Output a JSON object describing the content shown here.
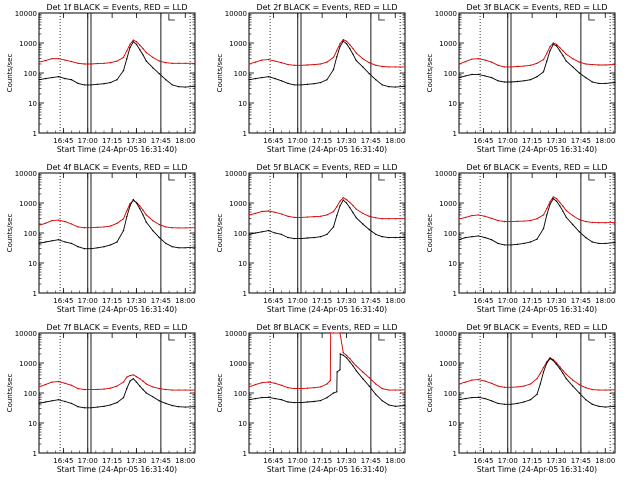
{
  "chart_data": {
    "type": "line",
    "xtick_labels": [
      "16:45",
      "17:00",
      "17:15",
      "17:30",
      "17:45",
      "18:00"
    ],
    "xlabel": "Start Time (24-Apr-05 16:31:40)",
    "ylabel": "Counts/sec",
    "y_scale": "log",
    "ylim": [
      1,
      10000
    ],
    "xlim_minutes_after_1630": [
      0,
      96
    ],
    "ytick_labels": [
      "1",
      "10",
      "100",
      "1000",
      "10000"
    ],
    "series_colors": {
      "Events": "#000000",
      "LLD": "#d40000"
    },
    "panels": [
      {
        "title": "Det 1f BLACK = Events, RED = LLD",
        "black": {
          "x": [
            0,
            4,
            8,
            12,
            16,
            20,
            24,
            28,
            32,
            36,
            40,
            44,
            48,
            52,
            54,
            56,
            58,
            60,
            62,
            64,
            66,
            70,
            74,
            78,
            82,
            86,
            90,
            96
          ],
          "y": [
            60,
            65,
            70,
            75,
            65,
            60,
            45,
            40,
            40,
            42,
            44,
            48,
            60,
            120,
            300,
            700,
            1100,
            900,
            600,
            400,
            250,
            150,
            95,
            60,
            40,
            35,
            34,
            36
          ]
        },
        "red": {
          "x": [
            0,
            4,
            8,
            12,
            16,
            20,
            24,
            28,
            32,
            36,
            40,
            44,
            48,
            52,
            54,
            56,
            58,
            60,
            62,
            64,
            66,
            70,
            74,
            78,
            82,
            86,
            90,
            96
          ],
          "y": [
            230,
            260,
            300,
            300,
            270,
            240,
            210,
            200,
            200,
            205,
            210,
            220,
            250,
            330,
            550,
            900,
            1250,
            1100,
            850,
            650,
            480,
            330,
            250,
            220,
            210,
            210,
            210,
            210
          ]
        }
      },
      {
        "title": "Det 2f BLACK = Events, RED = LLD",
        "black": {
          "x": [
            0,
            4,
            8,
            12,
            16,
            20,
            24,
            28,
            32,
            36,
            40,
            44,
            48,
            52,
            54,
            56,
            58,
            60,
            62,
            64,
            66,
            70,
            74,
            78,
            82,
            86,
            90,
            96
          ],
          "y": [
            60,
            65,
            70,
            75,
            65,
            55,
            45,
            40,
            40,
            42,
            44,
            48,
            60,
            130,
            350,
            750,
            1150,
            950,
            650,
            420,
            260,
            160,
            95,
            60,
            40,
            35,
            34,
            36
          ]
        },
        "red": {
          "x": [
            0,
            4,
            8,
            12,
            16,
            20,
            24,
            28,
            32,
            36,
            40,
            44,
            48,
            52,
            54,
            56,
            58,
            60,
            62,
            64,
            66,
            70,
            74,
            78,
            82,
            86,
            90,
            96
          ],
          "y": [
            200,
            230,
            270,
            280,
            250,
            220,
            190,
            180,
            180,
            185,
            190,
            200,
            230,
            330,
            560,
            950,
            1300,
            1150,
            880,
            650,
            460,
            300,
            220,
            180,
            165,
            160,
            160,
            160
          ]
        }
      },
      {
        "title": "Det 3f BLACK = Events, RED = LLD",
        "black": {
          "x": [
            0,
            4,
            8,
            12,
            16,
            20,
            24,
            28,
            32,
            36,
            40,
            44,
            48,
            52,
            54,
            56,
            58,
            60,
            62,
            64,
            66,
            70,
            74,
            78,
            82,
            86,
            90,
            96
          ],
          "y": [
            70,
            80,
            90,
            90,
            80,
            70,
            55,
            50,
            50,
            52,
            55,
            60,
            75,
            110,
            250,
            550,
            900,
            800,
            550,
            380,
            250,
            160,
            100,
            70,
            50,
            45,
            45,
            48
          ]
        },
        "red": {
          "x": [
            0,
            4,
            8,
            12,
            16,
            20,
            24,
            28,
            32,
            36,
            40,
            44,
            48,
            52,
            54,
            56,
            58,
            60,
            62,
            64,
            66,
            70,
            74,
            78,
            82,
            86,
            90,
            96
          ],
          "y": [
            200,
            240,
            290,
            300,
            270,
            230,
            180,
            160,
            160,
            165,
            170,
            180,
            210,
            280,
            450,
            750,
            1000,
            900,
            700,
            550,
            420,
            300,
            230,
            200,
            190,
            185,
            185,
            190
          ]
        }
      },
      {
        "title": "Det 4f BLACK = Events, RED = LLD",
        "black": {
          "x": [
            0,
            4,
            8,
            12,
            16,
            20,
            24,
            28,
            32,
            36,
            40,
            44,
            48,
            52,
            54,
            56,
            58,
            60,
            62,
            64,
            66,
            70,
            74,
            78,
            82,
            86,
            90,
            96
          ],
          "y": [
            45,
            50,
            55,
            60,
            50,
            45,
            35,
            30,
            30,
            32,
            35,
            40,
            50,
            120,
            350,
            800,
            1300,
            1000,
            650,
            400,
            230,
            120,
            70,
            45,
            35,
            32,
            32,
            34
          ]
        },
        "red": {
          "x": [
            0,
            4,
            8,
            12,
            16,
            20,
            24,
            28,
            32,
            36,
            40,
            44,
            48,
            52,
            54,
            56,
            58,
            60,
            62,
            64,
            66,
            70,
            74,
            78,
            82,
            86,
            90,
            96
          ],
          "y": [
            180,
            210,
            260,
            270,
            240,
            200,
            160,
            150,
            150,
            155,
            160,
            170,
            210,
            300,
            550,
            950,
            1200,
            1050,
            800,
            580,
            400,
            260,
            190,
            160,
            150,
            148,
            148,
            150
          ]
        }
      },
      {
        "title": "Det 5f BLACK = Events, RED = LLD",
        "black": {
          "x": [
            0,
            4,
            8,
            12,
            16,
            20,
            24,
            28,
            32,
            36,
            40,
            44,
            48,
            52,
            54,
            56,
            58,
            60,
            62,
            64,
            66,
            70,
            74,
            78,
            82,
            86,
            90,
            96
          ],
          "y": [
            90,
            100,
            110,
            120,
            100,
            90,
            70,
            65,
            65,
            68,
            70,
            75,
            90,
            160,
            380,
            800,
            1250,
            1000,
            700,
            480,
            320,
            200,
            130,
            90,
            75,
            70,
            70,
            72
          ]
        },
        "red": {
          "x": [
            0,
            4,
            8,
            12,
            16,
            20,
            24,
            28,
            32,
            36,
            40,
            44,
            48,
            52,
            54,
            56,
            58,
            60,
            62,
            64,
            66,
            70,
            74,
            78,
            82,
            86,
            90,
            96
          ],
          "y": [
            400,
            450,
            520,
            540,
            490,
            430,
            360,
            330,
            330,
            340,
            350,
            360,
            400,
            520,
            750,
            1150,
            1500,
            1300,
            1050,
            820,
            620,
            450,
            360,
            320,
            300,
            300,
            300,
            300
          ]
        }
      },
      {
        "title": "Det 6f BLACK = Events, RED = LLD",
        "black": {
          "x": [
            0,
            4,
            8,
            12,
            16,
            20,
            24,
            28,
            32,
            36,
            40,
            44,
            48,
            52,
            54,
            56,
            58,
            60,
            62,
            64,
            66,
            70,
            74,
            78,
            82,
            86,
            90,
            96
          ],
          "y": [
            60,
            70,
            75,
            80,
            70,
            60,
            45,
            40,
            40,
            42,
            45,
            50,
            62,
            140,
            400,
            900,
            1400,
            1150,
            800,
            530,
            330,
            190,
            110,
            70,
            50,
            45,
            45,
            48
          ]
        },
        "red": {
          "x": [
            0,
            4,
            8,
            12,
            16,
            20,
            24,
            28,
            32,
            36,
            40,
            44,
            48,
            52,
            54,
            56,
            58,
            60,
            62,
            64,
            66,
            70,
            74,
            78,
            82,
            86,
            90,
            96
          ],
          "y": [
            290,
            330,
            380,
            400,
            360,
            310,
            260,
            240,
            240,
            245,
            250,
            260,
            300,
            400,
            650,
            1100,
            1600,
            1400,
            1050,
            780,
            560,
            380,
            280,
            240,
            225,
            220,
            220,
            222
          ]
        }
      },
      {
        "title": "Det 7f BLACK = Events, RED = LLD",
        "black": {
          "x": [
            0,
            4,
            8,
            12,
            16,
            20,
            24,
            28,
            32,
            36,
            40,
            44,
            48,
            52,
            54,
            56,
            58,
            60,
            62,
            64,
            66,
            70,
            74,
            78,
            82,
            86,
            90,
            96
          ],
          "y": [
            45,
            50,
            55,
            60,
            52,
            45,
            35,
            32,
            32,
            34,
            36,
            40,
            48,
            70,
            140,
            250,
            300,
            230,
            170,
            130,
            100,
            75,
            55,
            45,
            38,
            35,
            34,
            35
          ]
        },
        "red": {
          "x": [
            0,
            4,
            8,
            12,
            16,
            20,
            24,
            28,
            32,
            36,
            40,
            44,
            48,
            52,
            54,
            56,
            58,
            60,
            62,
            64,
            66,
            70,
            74,
            78,
            82,
            86,
            90,
            96
          ],
          "y": [
            160,
            190,
            230,
            240,
            210,
            180,
            140,
            130,
            130,
            132,
            135,
            145,
            170,
            230,
            340,
            380,
            400,
            350,
            300,
            250,
            200,
            160,
            140,
            130,
            125,
            125,
            125,
            125
          ]
        }
      },
      {
        "title": "Det 8f BLACK = Events, RED = LLD",
        "black": {
          "x": [
            0,
            4,
            8,
            12,
            16,
            20,
            24,
            28,
            32,
            36,
            40,
            44,
            48,
            52,
            54,
            54.2,
            56,
            56.2,
            58,
            60,
            62,
            64,
            66,
            70,
            74,
            78,
            82,
            86,
            90,
            96
          ],
          "y": [
            60,
            65,
            70,
            72,
            65,
            60,
            50,
            48,
            48,
            50,
            52,
            56,
            70,
            100,
            110,
            500,
            600,
            2000,
            1800,
            1500,
            1100,
            800,
            550,
            300,
            170,
            90,
            55,
            40,
            36,
            38
          ]
        },
        "red": {
          "x": [
            0,
            4,
            8,
            12,
            16,
            20,
            24,
            28,
            32,
            36,
            40,
            44,
            48,
            50,
            50.3,
            52,
            56,
            58,
            60,
            62,
            64,
            66,
            70,
            74,
            78,
            82,
            86,
            90,
            96
          ],
          "y": [
            160,
            190,
            220,
            230,
            210,
            180,
            150,
            140,
            140,
            145,
            150,
            160,
            200,
            260,
            10000,
            10000,
            10000,
            2200,
            1800,
            1400,
            1050,
            800,
            500,
            320,
            200,
            140,
            125,
            125,
            128
          ]
        }
      },
      {
        "title": "Det 9f BLACK = Events, RED = LLD",
        "black": {
          "x": [
            0,
            4,
            8,
            12,
            16,
            20,
            24,
            28,
            32,
            36,
            40,
            44,
            48,
            50,
            52,
            54,
            56,
            58,
            60,
            62,
            64,
            66,
            70,
            74,
            78,
            82,
            86,
            90,
            96
          ],
          "y": [
            60,
            65,
            70,
            72,
            65,
            55,
            45,
            42,
            42,
            45,
            50,
            60,
            90,
            200,
            500,
            1000,
            1400,
            1200,
            900,
            650,
            450,
            300,
            170,
            100,
            60,
            42,
            36,
            34,
            36
          ]
        },
        "red": {
          "x": [
            0,
            4,
            8,
            12,
            16,
            20,
            24,
            28,
            32,
            36,
            40,
            44,
            48,
            50,
            52,
            54,
            56,
            58,
            60,
            62,
            64,
            66,
            70,
            74,
            78,
            82,
            86,
            90,
            96
          ],
          "y": [
            200,
            230,
            270,
            280,
            250,
            210,
            170,
            155,
            155,
            160,
            170,
            200,
            300,
            450,
            700,
            1100,
            1500,
            1300,
            1000,
            750,
            560,
            420,
            270,
            190,
            150,
            130,
            125,
            125,
            128
          ]
        }
      }
    ],
    "vertical_markers": {
      "dotted": [
        13,
        93
      ],
      "solid": [
        30,
        32,
        75
      ]
    }
  }
}
